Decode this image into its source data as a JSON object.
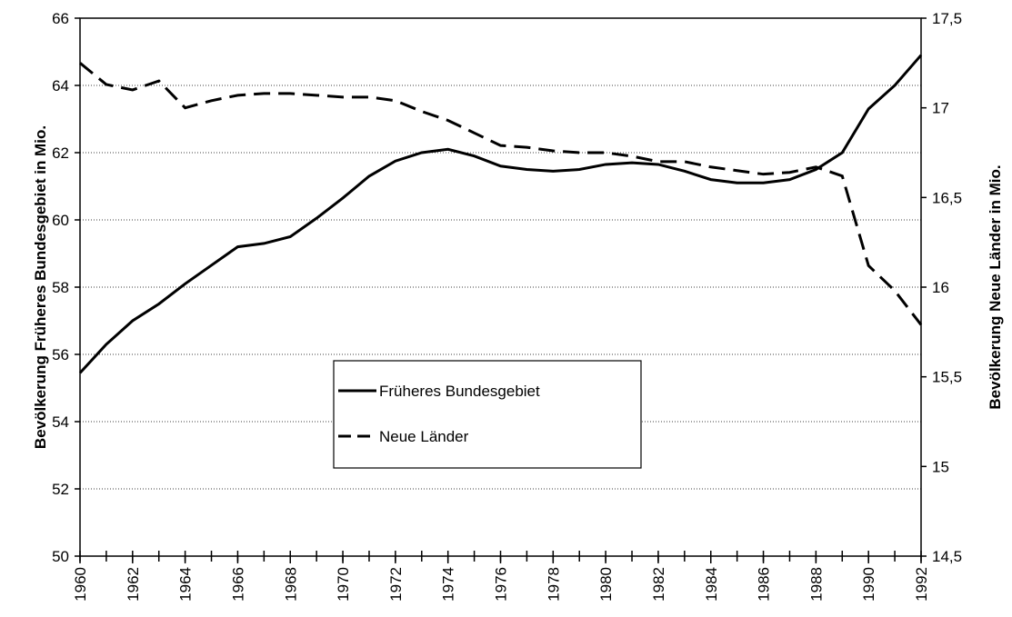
{
  "chart_data": {
    "type": "line",
    "ylabel": "Bevölkerung Früheres Bundesgebiet in Mio.",
    "y2label": "Bevölkerung Neue Länder in Mio.",
    "x": [
      1960,
      1961,
      1962,
      1963,
      1964,
      1965,
      1966,
      1967,
      1968,
      1969,
      1970,
      1971,
      1972,
      1973,
      1974,
      1975,
      1976,
      1977,
      1978,
      1979,
      1980,
      1981,
      1982,
      1983,
      1984,
      1985,
      1986,
      1987,
      1988,
      1989,
      1990,
      1991,
      1992
    ],
    "xlim": [
      1960,
      1992
    ],
    "xticks": [
      1960,
      1962,
      1964,
      1966,
      1968,
      1970,
      1972,
      1974,
      1976,
      1978,
      1980,
      1982,
      1984,
      1986,
      1988,
      1990,
      1992
    ],
    "ylim": [
      50,
      66
    ],
    "yticks": [
      50,
      52,
      54,
      56,
      58,
      60,
      62,
      64,
      66
    ],
    "y2lim": [
      14.5,
      17.5
    ],
    "y2ticks": [
      {
        "value": 14.5,
        "label": "14,5"
      },
      15,
      {
        "value": 15.5,
        "label": "15,5"
      },
      16,
      {
        "value": 16.5,
        "label": "16,5"
      },
      17,
      {
        "value": 17.5,
        "label": "17,5"
      }
    ],
    "grid": true,
    "legend": "center",
    "series": [
      {
        "name": "Früheres Bundesgebiet",
        "color": "#000000",
        "dash": "solid",
        "values": [
          55.45,
          56.3,
          57.0,
          57.5,
          58.1,
          58.65,
          59.2,
          59.3,
          59.5,
          60.05,
          60.65,
          61.3,
          61.75,
          62.0,
          62.1,
          61.9,
          61.6,
          61.5,
          61.45,
          61.5,
          61.65,
          61.7,
          61.65,
          61.45,
          61.2,
          61.1,
          61.1,
          61.2,
          61.5,
          62.0,
          63.3,
          64.0,
          64.9
        ]
      },
      {
        "name": "Neue Länder",
        "color": "#000000",
        "dash": "dashed",
        "axis": "y2",
        "values": [
          17.25,
          17.13,
          17.1,
          17.15,
          17.0,
          17.04,
          17.07,
          17.08,
          17.08,
          17.07,
          17.06,
          17.06,
          17.04,
          16.98,
          16.93,
          16.86,
          16.79,
          16.78,
          16.76,
          16.75,
          16.75,
          16.73,
          16.7,
          16.7,
          16.67,
          16.65,
          16.63,
          16.64,
          16.67,
          16.62,
          16.12,
          15.98,
          15.79
        ]
      }
    ]
  }
}
